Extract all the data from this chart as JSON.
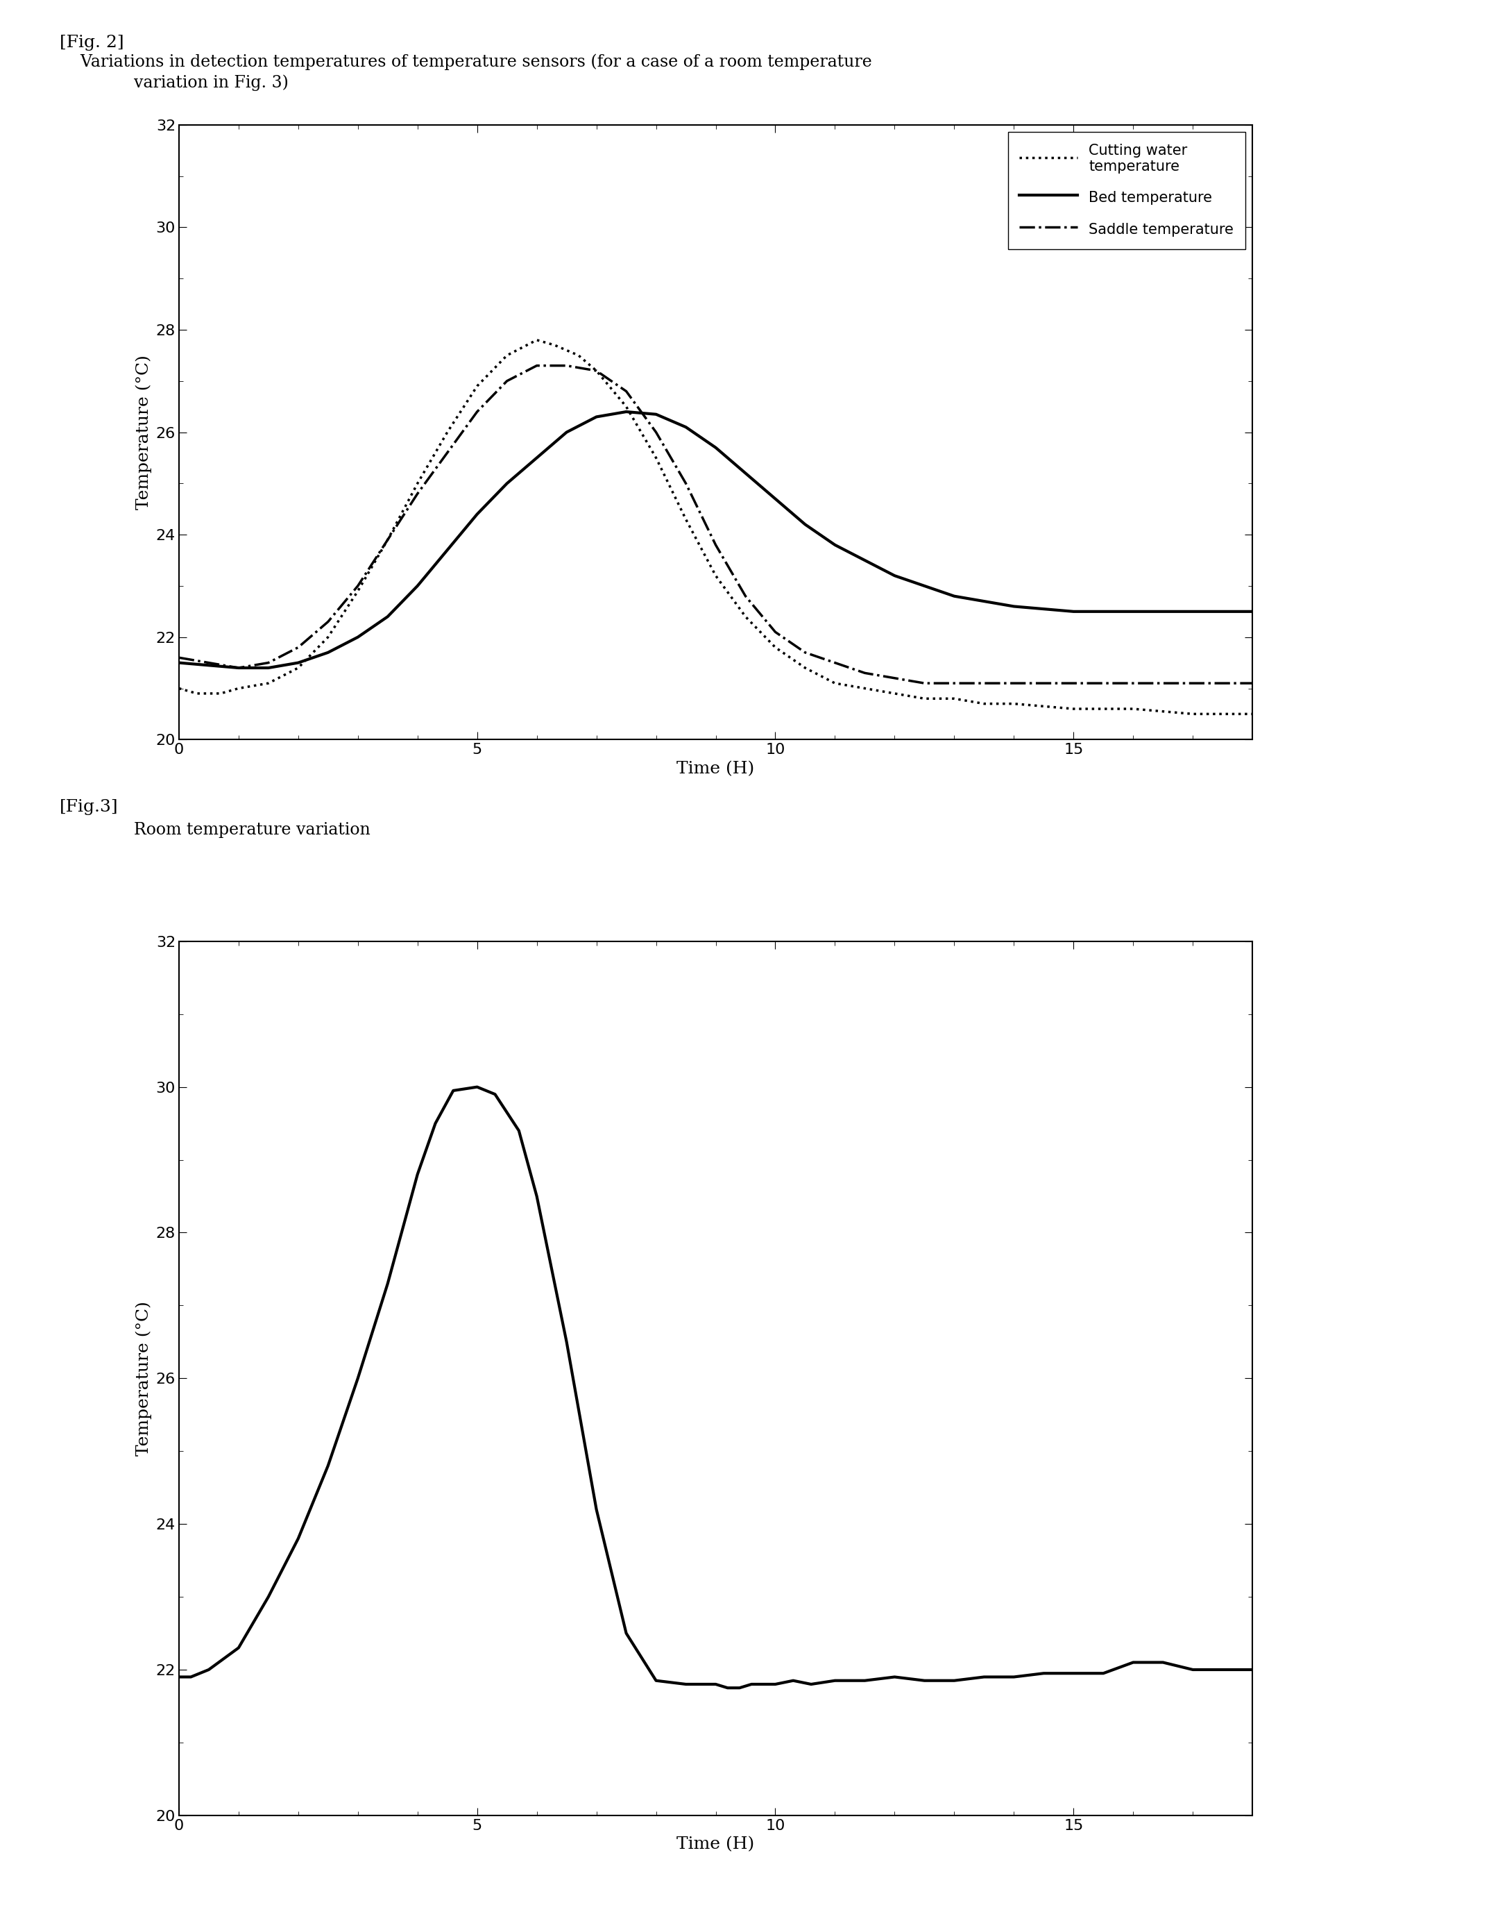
{
  "fig2_title_line1": "[Fig. 2]",
  "fig2_title_line2": "    Variations in detection temperatures of temperature sensors (for a case of a room temperature",
  "fig2_title_line3": "    variation in Fig. 3)",
  "fig3_title_line1": "[Fig.3]",
  "fig3_title_line2": "    Room temperature variation",
  "fig2_xlabel": "Time (H)",
  "fig2_ylabel": "Temperature (°C)",
  "fig2_xlim": [
    0,
    18
  ],
  "fig2_ylim": [
    20,
    32
  ],
  "fig2_yticks": [
    20,
    22,
    24,
    26,
    28,
    30,
    32
  ],
  "fig2_xticks": [
    0,
    5,
    10,
    15
  ],
  "cutting_water_x": [
    0,
    0.3,
    0.7,
    1.0,
    1.5,
    2.0,
    2.5,
    3.0,
    3.5,
    4.0,
    4.5,
    5.0,
    5.5,
    6.0,
    6.3,
    6.7,
    7.0,
    7.5,
    8.0,
    8.5,
    9.0,
    9.5,
    10.0,
    10.5,
    11.0,
    11.5,
    12.0,
    12.5,
    13.0,
    13.5,
    14.0,
    15.0,
    16.0,
    17.0,
    17.5,
    18.0
  ],
  "cutting_water_y": [
    21.0,
    20.9,
    20.9,
    21.0,
    21.1,
    21.4,
    22.0,
    22.9,
    23.9,
    25.0,
    26.0,
    26.9,
    27.5,
    27.8,
    27.7,
    27.5,
    27.2,
    26.5,
    25.5,
    24.3,
    23.2,
    22.4,
    21.8,
    21.4,
    21.1,
    21.0,
    20.9,
    20.8,
    20.8,
    20.7,
    20.7,
    20.6,
    20.6,
    20.5,
    20.5,
    20.5
  ],
  "bed_x": [
    0,
    0.5,
    1.0,
    1.5,
    2.0,
    2.5,
    3.0,
    3.5,
    4.0,
    4.5,
    5.0,
    5.5,
    6.0,
    6.5,
    7.0,
    7.5,
    8.0,
    8.5,
    9.0,
    9.5,
    10.0,
    10.5,
    11.0,
    11.5,
    12.0,
    12.5,
    13.0,
    13.5,
    14.0,
    14.5,
    15.0,
    15.5,
    16.0,
    16.5,
    17.0,
    17.5,
    18.0
  ],
  "bed_y": [
    21.5,
    21.45,
    21.4,
    21.4,
    21.5,
    21.7,
    22.0,
    22.4,
    23.0,
    23.7,
    24.4,
    25.0,
    25.5,
    26.0,
    26.3,
    26.4,
    26.35,
    26.1,
    25.7,
    25.2,
    24.7,
    24.2,
    23.8,
    23.5,
    23.2,
    23.0,
    22.8,
    22.7,
    22.6,
    22.55,
    22.5,
    22.5,
    22.5,
    22.5,
    22.5,
    22.5,
    22.5
  ],
  "saddle_x": [
    0,
    0.5,
    1.0,
    1.5,
    2.0,
    2.5,
    3.0,
    3.5,
    4.0,
    4.5,
    5.0,
    5.5,
    6.0,
    6.5,
    7.0,
    7.5,
    8.0,
    8.5,
    9.0,
    9.5,
    10.0,
    10.5,
    11.0,
    11.5,
    12.0,
    12.5,
    13.0,
    13.5,
    14.0,
    14.5,
    15.0,
    15.5,
    16.0,
    16.5,
    17.0,
    17.5,
    18.0
  ],
  "saddle_y": [
    21.6,
    21.5,
    21.4,
    21.5,
    21.8,
    22.3,
    23.0,
    23.9,
    24.8,
    25.6,
    26.4,
    27.0,
    27.3,
    27.3,
    27.2,
    26.8,
    26.0,
    25.0,
    23.8,
    22.8,
    22.1,
    21.7,
    21.5,
    21.3,
    21.2,
    21.1,
    21.1,
    21.1,
    21.1,
    21.1,
    21.1,
    21.1,
    21.1,
    21.1,
    21.1,
    21.1,
    21.1
  ],
  "fig3_xlabel": "Time (H)",
  "fig3_ylabel": "Temperature (°C)",
  "fig3_xlim": [
    0,
    18
  ],
  "fig3_ylim": [
    20,
    32
  ],
  "fig3_yticks": [
    20,
    22,
    24,
    26,
    28,
    30,
    32
  ],
  "fig3_xticks": [
    0,
    5,
    10,
    15
  ],
  "room_temp_x": [
    0,
    0.2,
    0.5,
    1.0,
    1.5,
    2.0,
    2.5,
    3.0,
    3.5,
    4.0,
    4.3,
    4.6,
    5.0,
    5.3,
    5.7,
    6.0,
    6.5,
    7.0,
    7.5,
    8.0,
    8.5,
    9.0,
    9.2,
    9.4,
    9.6,
    9.8,
    10.0,
    10.3,
    10.6,
    11.0,
    11.5,
    12.0,
    12.5,
    13.0,
    13.5,
    14.0,
    14.5,
    15.0,
    15.5,
    16.0,
    16.5,
    17.0,
    17.5,
    18.0
  ],
  "room_temp_y": [
    21.9,
    21.9,
    22.0,
    22.3,
    23.0,
    23.8,
    24.8,
    26.0,
    27.3,
    28.8,
    29.5,
    29.95,
    30.0,
    29.9,
    29.4,
    28.5,
    26.5,
    24.2,
    22.5,
    21.85,
    21.8,
    21.8,
    21.75,
    21.75,
    21.8,
    21.8,
    21.8,
    21.85,
    21.8,
    21.85,
    21.85,
    21.9,
    21.85,
    21.85,
    21.9,
    21.9,
    21.95,
    21.95,
    21.95,
    22.1,
    22.1,
    22.0,
    22.0,
    22.0
  ],
  "background_color": "#ffffff",
  "line_color": "#000000"
}
